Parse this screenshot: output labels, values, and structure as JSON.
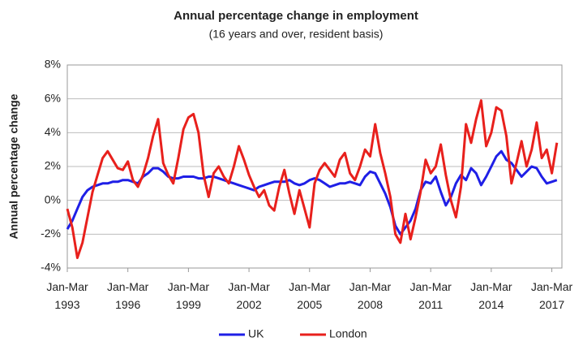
{
  "chart_data": {
    "type": "line",
    "title": "Annual percentage change in employment",
    "subtitle": "(16 years and over, resident basis)",
    "y_label": "Annual percentage change",
    "x": [
      1993,
      1993.25,
      1993.5,
      1993.75,
      1994,
      1994.25,
      1994.5,
      1994.75,
      1995,
      1995.25,
      1995.5,
      1995.75,
      1996,
      1996.25,
      1996.5,
      1996.75,
      1997,
      1997.25,
      1997.5,
      1997.75,
      1998,
      1998.25,
      1998.5,
      1998.75,
      1999,
      1999.25,
      1999.5,
      1999.75,
      2000,
      2000.25,
      2000.5,
      2000.75,
      2001,
      2001.25,
      2001.5,
      2001.75,
      2002,
      2002.25,
      2002.5,
      2002.75,
      2003,
      2003.25,
      2003.5,
      2003.75,
      2004,
      2004.25,
      2004.5,
      2004.75,
      2005,
      2005.25,
      2005.5,
      2005.75,
      2006,
      2006.25,
      2006.5,
      2006.75,
      2007,
      2007.25,
      2007.5,
      2007.75,
      2008,
      2008.25,
      2008.5,
      2008.75,
      2009,
      2009.25,
      2009.5,
      2009.75,
      2010,
      2010.25,
      2010.5,
      2010.75,
      2011,
      2011.25,
      2011.5,
      2011.75,
      2012,
      2012.25,
      2012.5,
      2012.75,
      2013,
      2013.25,
      2013.5,
      2013.75,
      2014,
      2014.25,
      2014.5,
      2014.75,
      2015,
      2015.25,
      2015.5,
      2015.75,
      2016,
      2016.25,
      2016.5,
      2016.75,
      2017,
      2017.25
    ],
    "series": [
      {
        "name": "UK",
        "color": "#1f1fe6",
        "values": [
          -1.7,
          -1.2,
          -0.5,
          0.2,
          0.6,
          0.8,
          0.9,
          1.0,
          1.0,
          1.1,
          1.1,
          1.2,
          1.2,
          1.1,
          1.0,
          1.4,
          1.6,
          1.9,
          1.9,
          1.7,
          1.4,
          1.3,
          1.3,
          1.4,
          1.4,
          1.4,
          1.3,
          1.3,
          1.4,
          1.4,
          1.3,
          1.2,
          1.1,
          1.0,
          0.9,
          0.8,
          0.7,
          0.6,
          0.8,
          0.9,
          1.0,
          1.1,
          1.1,
          1.1,
          1.2,
          1.0,
          0.9,
          1.0,
          1.2,
          1.3,
          1.2,
          1.0,
          0.8,
          0.9,
          1.0,
          1.0,
          1.1,
          1.0,
          0.9,
          1.4,
          1.7,
          1.6,
          1.0,
          0.4,
          -0.4,
          -1.5,
          -2.0,
          -1.6,
          -1.2,
          -0.5,
          0.6,
          1.1,
          1.0,
          1.4,
          0.5,
          -0.3,
          0.2,
          1.0,
          1.5,
          1.2,
          1.9,
          1.6,
          0.9,
          1.4,
          2.0,
          2.6,
          2.9,
          2.4,
          2.2,
          1.8,
          1.4,
          1.7,
          2.0,
          1.9,
          1.4,
          1.0,
          1.1,
          1.2
        ]
      },
      {
        "name": "London",
        "color": "#e8201c",
        "values": [
          -0.5,
          -1.6,
          -3.4,
          -2.5,
          -1.0,
          0.5,
          1.5,
          2.5,
          2.9,
          2.4,
          1.9,
          1.8,
          2.3,
          1.2,
          0.8,
          1.5,
          2.5,
          3.8,
          4.8,
          2.2,
          1.5,
          1.0,
          2.5,
          4.2,
          4.9,
          5.1,
          4.0,
          1.5,
          0.2,
          1.6,
          2.0,
          1.4,
          1.0,
          2.0,
          3.2,
          2.4,
          1.5,
          0.8,
          0.2,
          0.6,
          -0.3,
          -0.6,
          0.8,
          1.8,
          0.4,
          -0.8,
          0.6,
          -0.5,
          -1.6,
          1.0,
          1.8,
          2.2,
          1.8,
          1.4,
          2.4,
          2.8,
          1.6,
          1.2,
          2.0,
          3.0,
          2.6,
          4.5,
          2.8,
          1.6,
          0.2,
          -2.0,
          -2.5,
          -0.8,
          -2.3,
          -1.0,
          0.5,
          2.4,
          1.6,
          2.0,
          3.3,
          1.5,
          0.0,
          -1.0,
          0.8,
          4.5,
          3.4,
          4.8,
          5.9,
          3.2,
          4.0,
          5.5,
          5.3,
          3.8,
          1.0,
          2.2,
          3.5,
          2.0,
          3.0,
          4.6,
          2.5,
          3.0,
          1.6,
          3.4
        ]
      }
    ],
    "xlim": [
      1993,
      2017.5
    ],
    "xticks": [
      {
        "value": 1993,
        "label": "Jan-Mar 1993"
      },
      {
        "value": 1996,
        "label": "Jan-Mar 1996"
      },
      {
        "value": 1999,
        "label": "Jan-Mar 1999"
      },
      {
        "value": 2002,
        "label": "Jan-Mar 2002"
      },
      {
        "value": 2005,
        "label": "Jan-Mar 2005"
      },
      {
        "value": 2008,
        "label": "Jan-Mar 2008"
      },
      {
        "value": 2011,
        "label": "Jan-Mar 2011"
      },
      {
        "value": 2014,
        "label": "Jan-Mar 2014"
      },
      {
        "value": 2017,
        "label": "Jan-Mar 2017"
      }
    ],
    "ylim": [
      -4,
      8
    ],
    "yticks": [
      {
        "value": -4,
        "label": "-4%"
      },
      {
        "value": -2,
        "label": "-2%"
      },
      {
        "value": 0,
        "label": "0%"
      },
      {
        "value": 2,
        "label": "2%"
      },
      {
        "value": 4,
        "label": "4%"
      },
      {
        "value": 6,
        "label": "6%"
      },
      {
        "value": 8,
        "label": "8%"
      }
    ],
    "grid": true,
    "legend": "bottom"
  }
}
